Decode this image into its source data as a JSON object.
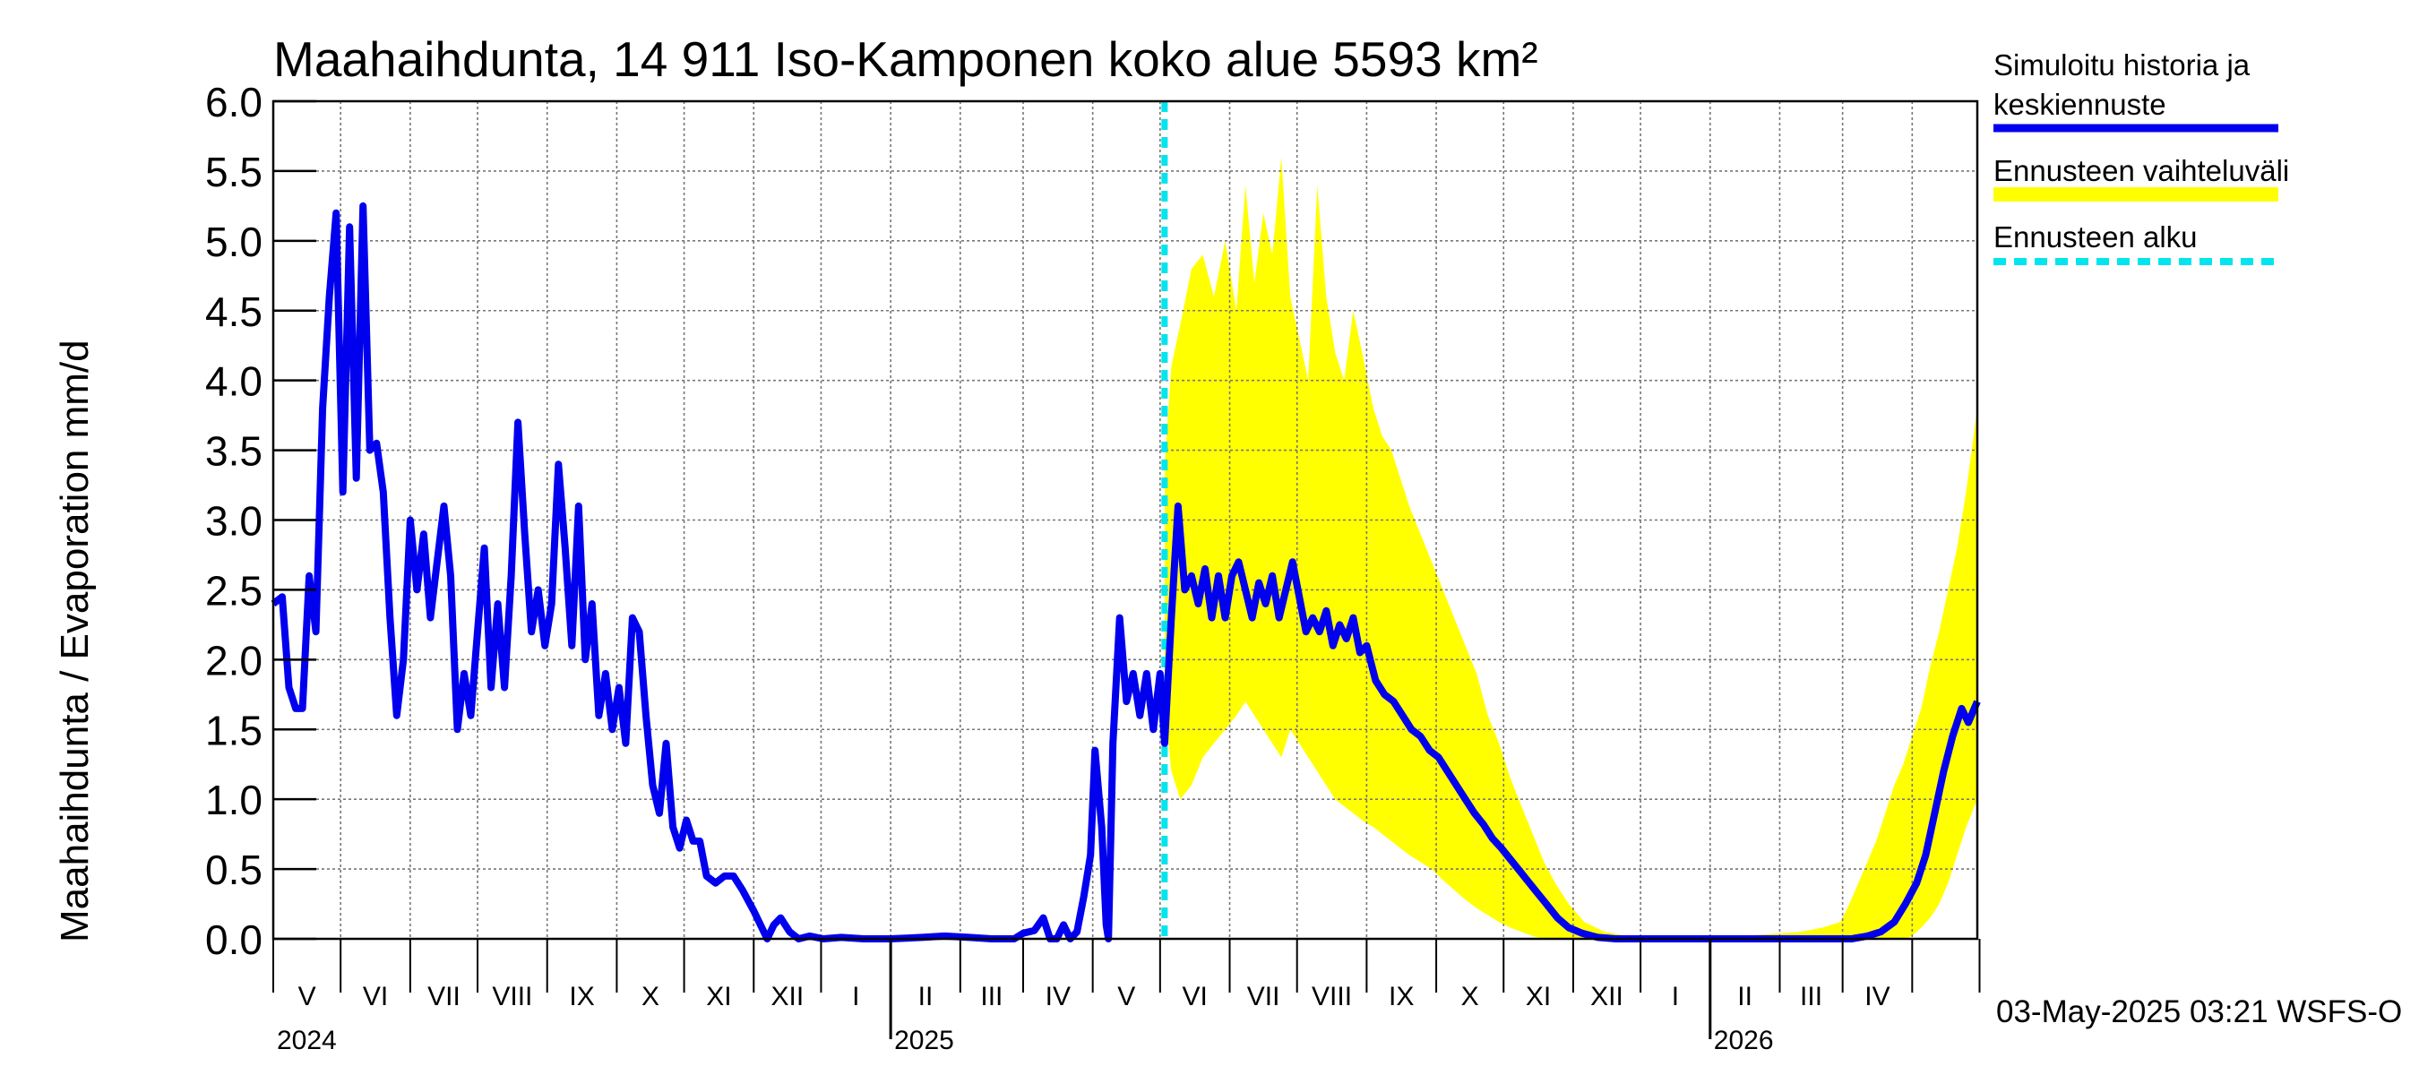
{
  "chart_data": {
    "type": "line",
    "title": "Maahaihdunta, 14 911 Iso-Kamponen koko alue 5593 km²",
    "ylabel": "Maahaihdunta / Evaporation   mm/d",
    "ylim": [
      0,
      6.0
    ],
    "yticks": [
      "0.0",
      "0.5",
      "1.0",
      "1.5",
      "2.0",
      "2.5",
      "3.0",
      "3.5",
      "4.0",
      "4.5",
      "5.0",
      "5.5",
      "6.0"
    ],
    "xlim": [
      "2024-04-01",
      "2026-04-30"
    ],
    "forecast_start": "2025-05-03",
    "grid": true,
    "legend_position": "right",
    "month_labels": [
      "V",
      "VI",
      "VII",
      "VIII",
      "IX",
      "X",
      "XI",
      "XII",
      "I",
      "II",
      "III",
      "IV",
      "V",
      "VI",
      "VII",
      "VIII",
      "IX",
      "X",
      "XI",
      "XII",
      "I",
      "II",
      "III",
      "IV"
    ],
    "year_labels": [
      "2024",
      "2025",
      "2026"
    ],
    "series": [
      {
        "name": "Simuloitu historia ja keskiennuste",
        "color": "#0000ee",
        "points": [
          [
            "2024-04-01",
            2.4
          ],
          [
            "2024-04-05",
            2.45
          ],
          [
            "2024-04-08",
            1.8
          ],
          [
            "2024-04-11",
            1.65
          ],
          [
            "2024-04-14",
            1.65
          ],
          [
            "2024-04-17",
            2.6
          ],
          [
            "2024-04-20",
            2.2
          ],
          [
            "2024-04-23",
            3.8
          ],
          [
            "2024-04-26",
            4.6
          ],
          [
            "2024-04-29",
            5.2
          ],
          [
            "2024-05-02",
            3.2
          ],
          [
            "2024-05-05",
            5.1
          ],
          [
            "2024-05-08",
            3.3
          ],
          [
            "2024-05-11",
            5.25
          ],
          [
            "2024-05-14",
            3.5
          ],
          [
            "2024-05-17",
            3.55
          ],
          [
            "2024-05-20",
            3.2
          ],
          [
            "2024-05-23",
            2.3
          ],
          [
            "2024-05-26",
            1.6
          ],
          [
            "2024-05-29",
            2.0
          ],
          [
            "2024-06-01",
            3.0
          ],
          [
            "2024-06-04",
            2.5
          ],
          [
            "2024-06-07",
            2.9
          ],
          [
            "2024-06-10",
            2.3
          ],
          [
            "2024-06-13",
            2.7
          ],
          [
            "2024-06-16",
            3.1
          ],
          [
            "2024-06-19",
            2.6
          ],
          [
            "2024-06-22",
            1.5
          ],
          [
            "2024-06-25",
            1.9
          ],
          [
            "2024-06-28",
            1.6
          ],
          [
            "2024-07-01",
            2.2
          ],
          [
            "2024-07-04",
            2.8
          ],
          [
            "2024-07-07",
            1.8
          ],
          [
            "2024-07-10",
            2.4
          ],
          [
            "2024-07-13",
            1.8
          ],
          [
            "2024-07-16",
            2.6
          ],
          [
            "2024-07-19",
            3.7
          ],
          [
            "2024-07-22",
            2.9
          ],
          [
            "2024-07-25",
            2.2
          ],
          [
            "2024-07-28",
            2.5
          ],
          [
            "2024-07-31",
            2.1
          ],
          [
            "2024-08-03",
            2.4
          ],
          [
            "2024-08-06",
            3.4
          ],
          [
            "2024-08-09",
            2.8
          ],
          [
            "2024-08-12",
            2.1
          ],
          [
            "2024-08-15",
            3.1
          ],
          [
            "2024-08-18",
            2.0
          ],
          [
            "2024-08-21",
            2.4
          ],
          [
            "2024-08-24",
            1.6
          ],
          [
            "2024-08-27",
            1.9
          ],
          [
            "2024-08-30",
            1.5
          ],
          [
            "2024-09-02",
            1.8
          ],
          [
            "2024-09-05",
            1.4
          ],
          [
            "2024-09-08",
            2.3
          ],
          [
            "2024-09-11",
            2.2
          ],
          [
            "2024-09-14",
            1.6
          ],
          [
            "2024-09-17",
            1.1
          ],
          [
            "2024-09-20",
            0.9
          ],
          [
            "2024-09-23",
            1.4
          ],
          [
            "2024-09-26",
            0.8
          ],
          [
            "2024-09-29",
            0.65
          ],
          [
            "2024-10-02",
            0.85
          ],
          [
            "2024-10-05",
            0.7
          ],
          [
            "2024-10-08",
            0.7
          ],
          [
            "2024-10-11",
            0.45
          ],
          [
            "2024-10-15",
            0.4
          ],
          [
            "2024-10-19",
            0.45
          ],
          [
            "2024-10-23",
            0.45
          ],
          [
            "2024-10-27",
            0.35
          ],
          [
            "2024-11-01",
            0.2
          ],
          [
            "2024-11-04",
            0.1
          ],
          [
            "2024-11-07",
            0.0
          ],
          [
            "2024-11-10",
            0.1
          ],
          [
            "2024-11-13",
            0.15
          ],
          [
            "2024-11-17",
            0.05
          ],
          [
            "2024-11-21",
            0.0
          ],
          [
            "2024-11-26",
            0.02
          ],
          [
            "2024-12-02",
            0.0
          ],
          [
            "2024-12-10",
            0.01
          ],
          [
            "2024-12-20",
            0.0
          ],
          [
            "2025-01-01",
            0.0
          ],
          [
            "2025-01-15",
            0.01
          ],
          [
            "2025-01-25",
            0.02
          ],
          [
            "2025-02-05",
            0.01
          ],
          [
            "2025-02-15",
            0.0
          ],
          [
            "2025-02-25",
            0.0
          ],
          [
            "2025-03-01",
            0.04
          ],
          [
            "2025-03-06",
            0.06
          ],
          [
            "2025-03-10",
            0.15
          ],
          [
            "2025-03-13",
            0.0
          ],
          [
            "2025-03-16",
            0.0
          ],
          [
            "2025-03-19",
            0.1
          ],
          [
            "2025-03-22",
            0.0
          ],
          [
            "2025-03-25",
            0.05
          ],
          [
            "2025-03-28",
            0.3
          ],
          [
            "2025-03-31",
            0.6
          ],
          [
            "2025-04-02",
            1.35
          ],
          [
            "2025-04-05",
            0.8
          ],
          [
            "2025-04-07",
            0.1
          ],
          [
            "2025-04-08",
            0.0
          ],
          [
            "2025-04-10",
            1.4
          ],
          [
            "2025-04-13",
            2.3
          ],
          [
            "2025-04-16",
            1.7
          ],
          [
            "2025-04-19",
            1.9
          ],
          [
            "2025-04-22",
            1.6
          ],
          [
            "2025-04-25",
            1.9
          ],
          [
            "2025-04-28",
            1.5
          ],
          [
            "2025-05-01",
            1.9
          ],
          [
            "2025-05-03",
            1.4
          ],
          [
            "2025-05-06",
            2.3
          ],
          [
            "2025-05-09",
            3.1
          ],
          [
            "2025-05-12",
            2.5
          ],
          [
            "2025-05-15",
            2.6
          ],
          [
            "2025-05-18",
            2.4
          ],
          [
            "2025-05-21",
            2.65
          ],
          [
            "2025-05-24",
            2.3
          ],
          [
            "2025-05-27",
            2.6
          ],
          [
            "2025-05-30",
            2.3
          ],
          [
            "2025-06-02",
            2.6
          ],
          [
            "2025-06-05",
            2.7
          ],
          [
            "2025-06-08",
            2.5
          ],
          [
            "2025-06-11",
            2.3
          ],
          [
            "2025-06-14",
            2.55
          ],
          [
            "2025-06-17",
            2.4
          ],
          [
            "2025-06-20",
            2.6
          ],
          [
            "2025-06-23",
            2.3
          ],
          [
            "2025-06-26",
            2.5
          ],
          [
            "2025-06-29",
            2.7
          ],
          [
            "2025-07-02",
            2.45
          ],
          [
            "2025-07-05",
            2.2
          ],
          [
            "2025-07-08",
            2.3
          ],
          [
            "2025-07-11",
            2.2
          ],
          [
            "2025-07-14",
            2.35
          ],
          [
            "2025-07-17",
            2.1
          ],
          [
            "2025-07-20",
            2.25
          ],
          [
            "2025-07-23",
            2.15
          ],
          [
            "2025-07-26",
            2.3
          ],
          [
            "2025-07-29",
            2.05
          ],
          [
            "2025-08-01",
            2.1
          ],
          [
            "2025-08-05",
            1.85
          ],
          [
            "2025-08-09",
            1.75
          ],
          [
            "2025-08-13",
            1.7
          ],
          [
            "2025-08-17",
            1.6
          ],
          [
            "2025-08-21",
            1.5
          ],
          [
            "2025-08-25",
            1.45
          ],
          [
            "2025-08-29",
            1.35
          ],
          [
            "2025-09-02",
            1.3
          ],
          [
            "2025-09-06",
            1.2
          ],
          [
            "2025-09-10",
            1.1
          ],
          [
            "2025-09-14",
            1.0
          ],
          [
            "2025-09-18",
            0.9
          ],
          [
            "2025-09-22",
            0.82
          ],
          [
            "2025-09-26",
            0.72
          ],
          [
            "2025-09-30",
            0.65
          ],
          [
            "2025-10-05",
            0.55
          ],
          [
            "2025-10-10",
            0.45
          ],
          [
            "2025-10-15",
            0.35
          ],
          [
            "2025-10-20",
            0.25
          ],
          [
            "2025-10-25",
            0.15
          ],
          [
            "2025-10-30",
            0.08
          ],
          [
            "2025-11-05",
            0.04
          ],
          [
            "2025-11-12",
            0.01
          ],
          [
            "2025-11-20",
            0.0
          ],
          [
            "2025-12-15",
            0.0
          ],
          [
            "2026-01-15",
            0.0
          ],
          [
            "2026-02-15",
            0.0
          ],
          [
            "2026-03-05",
            0.0
          ],
          [
            "2026-03-12",
            0.02
          ],
          [
            "2026-03-18",
            0.05
          ],
          [
            "2026-03-24",
            0.12
          ],
          [
            "2026-03-29",
            0.25
          ],
          [
            "2026-04-03",
            0.4
          ],
          [
            "2026-04-07",
            0.6
          ],
          [
            "2026-04-11",
            0.9
          ],
          [
            "2026-04-15",
            1.2
          ],
          [
            "2026-04-19",
            1.45
          ],
          [
            "2026-04-23",
            1.65
          ],
          [
            "2026-04-26",
            1.55
          ],
          [
            "2026-04-30",
            1.7
          ]
        ]
      },
      {
        "name": "Ennusteen vaihteluväli",
        "color": "#ffff00",
        "band": [
          [
            "2025-05-03",
            1.7,
            3.4
          ],
          [
            "2025-05-06",
            1.2,
            4.1
          ],
          [
            "2025-05-10",
            1.0,
            4.4
          ],
          [
            "2025-05-15",
            1.1,
            4.8
          ],
          [
            "2025-05-20",
            1.3,
            4.9
          ],
          [
            "2025-05-25",
            1.4,
            4.6
          ],
          [
            "2025-05-30",
            1.5,
            5.0
          ],
          [
            "2025-06-04",
            1.6,
            4.5
          ],
          [
            "2025-06-08",
            1.7,
            5.4
          ],
          [
            "2025-06-12",
            1.6,
            4.7
          ],
          [
            "2025-06-16",
            1.5,
            5.2
          ],
          [
            "2025-06-20",
            1.4,
            4.9
          ],
          [
            "2025-06-24",
            1.3,
            5.6
          ],
          [
            "2025-06-28",
            1.5,
            4.6
          ],
          [
            "2025-07-02",
            1.4,
            4.3
          ],
          [
            "2025-07-06",
            1.3,
            4.0
          ],
          [
            "2025-07-10",
            1.2,
            5.4
          ],
          [
            "2025-07-14",
            1.1,
            4.6
          ],
          [
            "2025-07-18",
            1.0,
            4.2
          ],
          [
            "2025-07-22",
            0.95,
            4.0
          ],
          [
            "2025-07-26",
            0.9,
            4.5
          ],
          [
            "2025-07-30",
            0.85,
            4.2
          ],
          [
            "2025-08-04",
            0.8,
            3.8
          ],
          [
            "2025-08-08",
            0.75,
            3.6
          ],
          [
            "2025-08-12",
            0.7,
            3.5
          ],
          [
            "2025-08-16",
            0.65,
            3.3
          ],
          [
            "2025-08-20",
            0.6,
            3.1
          ],
          [
            "2025-08-25",
            0.55,
            2.9
          ],
          [
            "2025-08-30",
            0.5,
            2.7
          ],
          [
            "2025-09-04",
            0.42,
            2.5
          ],
          [
            "2025-09-09",
            0.35,
            2.3
          ],
          [
            "2025-09-14",
            0.28,
            2.1
          ],
          [
            "2025-09-19",
            0.22,
            1.9
          ],
          [
            "2025-09-24",
            0.17,
            1.6
          ],
          [
            "2025-09-29",
            0.12,
            1.4
          ],
          [
            "2025-10-04",
            0.08,
            1.15
          ],
          [
            "2025-10-09",
            0.05,
            0.95
          ],
          [
            "2025-10-14",
            0.02,
            0.75
          ],
          [
            "2025-10-19",
            0.0,
            0.55
          ],
          [
            "2025-10-24",
            0.0,
            0.4
          ],
          [
            "2025-10-30",
            0.0,
            0.25
          ],
          [
            "2025-11-06",
            0.0,
            0.12
          ],
          [
            "2025-11-15",
            0.0,
            0.05
          ],
          [
            "2025-11-25",
            0.0,
            0.02
          ],
          [
            "2025-12-15",
            0.0,
            0.01
          ],
          [
            "2026-01-15",
            0.0,
            0.02
          ],
          [
            "2026-02-10",
            0.0,
            0.05
          ],
          [
            "2026-02-20",
            0.0,
            0.08
          ],
          [
            "2026-02-28",
            0.0,
            0.12
          ],
          [
            "2026-03-04",
            0.0,
            0.25
          ],
          [
            "2026-03-08",
            0.0,
            0.4
          ],
          [
            "2026-03-12",
            0.0,
            0.55
          ],
          [
            "2026-03-16",
            0.0,
            0.7
          ],
          [
            "2026-03-20",
            0.0,
            0.9
          ],
          [
            "2026-03-24",
            0.0,
            1.1
          ],
          [
            "2026-03-28",
            0.0,
            1.25
          ],
          [
            "2026-04-01",
            0.02,
            1.45
          ],
          [
            "2026-04-05",
            0.08,
            1.65
          ],
          [
            "2026-04-09",
            0.15,
            1.95
          ],
          [
            "2026-04-13",
            0.25,
            2.2
          ],
          [
            "2026-04-17",
            0.4,
            2.5
          ],
          [
            "2026-04-21",
            0.6,
            2.8
          ],
          [
            "2026-04-25",
            0.8,
            3.2
          ],
          [
            "2026-04-30",
            1.0,
            3.8
          ]
        ]
      },
      {
        "name": "Ennusteen alku",
        "color": "#00e5ee"
      }
    ],
    "footer": "03-May-2025 03:21 WSFS-O"
  }
}
